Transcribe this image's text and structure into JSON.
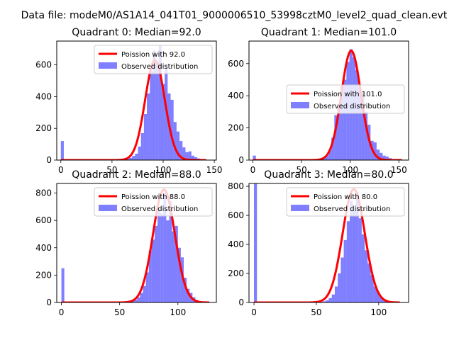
{
  "figure": {
    "suptitle": "Data file: modeM0/AS1A14_041T01_9000006510_53998cztM0_level2_quad_clean.evt"
  },
  "chart_data": [
    {
      "type": "histogram",
      "title": "Quadrant 0: Median=92.0",
      "xlim": [
        -4,
        152
      ],
      "ylim": [
        0,
        750
      ],
      "xticks": [
        0,
        50,
        100,
        150
      ],
      "yticks": [
        0,
        200,
        400,
        600
      ],
      "legend": {
        "placement": "top-right",
        "entries": [
          "Poission with 92.0",
          "Observed distribution"
        ]
      },
      "bin_width": 2.9,
      "bars": [
        {
          "x": 0,
          "value": 120
        },
        {
          "x": 58.0,
          "value": 3
        },
        {
          "x": 60.9,
          "value": 4
        },
        {
          "x": 63.8,
          "value": 8
        },
        {
          "x": 66.7,
          "value": 14
        },
        {
          "x": 69.6,
          "value": 26
        },
        {
          "x": 72.5,
          "value": 40
        },
        {
          "x": 75.4,
          "value": 85
        },
        {
          "x": 78.3,
          "value": 170
        },
        {
          "x": 81.2,
          "value": 290
        },
        {
          "x": 84.1,
          "value": 420
        },
        {
          "x": 87.0,
          "value": 560
        },
        {
          "x": 89.9,
          "value": 690
        },
        {
          "x": 92.8,
          "value": 620
        },
        {
          "x": 95.7,
          "value": 720
        },
        {
          "x": 98.6,
          "value": 480
        },
        {
          "x": 101.5,
          "value": 600
        },
        {
          "x": 104.4,
          "value": 420
        },
        {
          "x": 107.3,
          "value": 380
        },
        {
          "x": 110.2,
          "value": 240
        },
        {
          "x": 113.1,
          "value": 180
        },
        {
          "x": 116.0,
          "value": 120
        },
        {
          "x": 118.9,
          "value": 80
        },
        {
          "x": 121.8,
          "value": 50
        },
        {
          "x": 124.7,
          "value": 55
        },
        {
          "x": 127.6,
          "value": 28
        },
        {
          "x": 130.5,
          "value": 18
        },
        {
          "x": 133.4,
          "value": 10
        },
        {
          "x": 136.3,
          "value": 6
        },
        {
          "x": 139.2,
          "value": 3
        }
      ],
      "poisson": {
        "mean": 92.0,
        "peak": 628,
        "x_start": 0,
        "x_end": 142
      }
    },
    {
      "type": "histogram",
      "title": "Quadrant 1: Median=101.0",
      "xlim": [
        -4,
        160
      ],
      "ylim": [
        0,
        740
      ],
      "xticks": [
        0,
        50,
        100,
        150
      ],
      "yticks": [
        0,
        200,
        400,
        600
      ],
      "legend": {
        "placement": "center-right",
        "entries": [
          "Poission with 101.0",
          "Observed distribution"
        ]
      },
      "bin_width": 3.1,
      "bars": [
        {
          "x": 0,
          "value": 28
        },
        {
          "x": 62.0,
          "value": 3
        },
        {
          "x": 65.1,
          "value": 5
        },
        {
          "x": 68.2,
          "value": 10
        },
        {
          "x": 71.3,
          "value": 14
        },
        {
          "x": 74.4,
          "value": 25
        },
        {
          "x": 77.5,
          "value": 60
        },
        {
          "x": 80.6,
          "value": 140
        },
        {
          "x": 83.7,
          "value": 280
        },
        {
          "x": 86.8,
          "value": 330
        },
        {
          "x": 89.9,
          "value": 460
        },
        {
          "x": 93.0,
          "value": 500
        },
        {
          "x": 96.1,
          "value": 610
        },
        {
          "x": 99.2,
          "value": 690
        },
        {
          "x": 102.3,
          "value": 640
        },
        {
          "x": 105.4,
          "value": 560
        },
        {
          "x": 108.5,
          "value": 450
        },
        {
          "x": 111.6,
          "value": 420
        },
        {
          "x": 114.7,
          "value": 300
        },
        {
          "x": 117.8,
          "value": 220
        },
        {
          "x": 120.9,
          "value": 120
        },
        {
          "x": 124.0,
          "value": 110
        },
        {
          "x": 127.1,
          "value": 65
        },
        {
          "x": 130.2,
          "value": 45
        },
        {
          "x": 133.3,
          "value": 28
        },
        {
          "x": 136.4,
          "value": 22
        },
        {
          "x": 139.5,
          "value": 12
        },
        {
          "x": 142.6,
          "value": 6
        },
        {
          "x": 145.7,
          "value": 4
        }
      ],
      "poisson": {
        "mean": 101.0,
        "peak": 680,
        "x_start": 0,
        "x_end": 153
      }
    },
    {
      "type": "histogram",
      "title": "Quadrant 2: Median=88.0",
      "xlim": [
        -4,
        133
      ],
      "ylim": [
        0,
        870
      ],
      "xticks": [
        0,
        50,
        100
      ],
      "yticks": [
        0,
        200,
        400,
        600,
        800
      ],
      "legend": {
        "placement": "top-right",
        "entries": [
          "Poission with 88.0",
          "Observed distribution"
        ]
      },
      "bin_width": 2.5,
      "bars": [
        {
          "x": 0,
          "value": 250
        },
        {
          "x": 57.5,
          "value": 5
        },
        {
          "x": 60.0,
          "value": 10
        },
        {
          "x": 62.5,
          "value": 20
        },
        {
          "x": 65.0,
          "value": 38
        },
        {
          "x": 67.5,
          "value": 70
        },
        {
          "x": 70.0,
          "value": 120
        },
        {
          "x": 72.5,
          "value": 220
        },
        {
          "x": 75.0,
          "value": 380
        },
        {
          "x": 77.5,
          "value": 460
        },
        {
          "x": 80.0,
          "value": 560
        },
        {
          "x": 82.5,
          "value": 680
        },
        {
          "x": 85.0,
          "value": 650
        },
        {
          "x": 87.5,
          "value": 800
        },
        {
          "x": 90.0,
          "value": 600
        },
        {
          "x": 92.5,
          "value": 740
        },
        {
          "x": 95.0,
          "value": 520
        },
        {
          "x": 97.5,
          "value": 560
        },
        {
          "x": 100.0,
          "value": 400
        },
        {
          "x": 102.5,
          "value": 330
        },
        {
          "x": 105.0,
          "value": 180
        },
        {
          "x": 107.5,
          "value": 100
        },
        {
          "x": 110.0,
          "value": 70
        },
        {
          "x": 112.5,
          "value": 38
        },
        {
          "x": 115.0,
          "value": 18
        },
        {
          "x": 117.5,
          "value": 10
        },
        {
          "x": 120.0,
          "value": 5
        }
      ],
      "poisson": {
        "mean": 88.0,
        "peak": 825,
        "x_start": 0,
        "x_end": 127
      }
    },
    {
      "type": "histogram",
      "title": "Quadrant 3: Median=80.0",
      "xlim": [
        -4,
        124
      ],
      "ylim": [
        0,
        820
      ],
      "xticks": [
        0,
        50,
        100
      ],
      "yticks": [
        0,
        200,
        400,
        600,
        800
      ],
      "legend": {
        "placement": "top-right",
        "entries": [
          "Poission with 80.0",
          "Observed distribution"
        ]
      },
      "bin_width": 2.4,
      "bars": [
        {
          "x": 0,
          "value": 820
        },
        {
          "x": 52.8,
          "value": 4
        },
        {
          "x": 55.2,
          "value": 8
        },
        {
          "x": 57.6,
          "value": 15
        },
        {
          "x": 60.0,
          "value": 30
        },
        {
          "x": 62.4,
          "value": 55
        },
        {
          "x": 64.8,
          "value": 110
        },
        {
          "x": 67.2,
          "value": 200
        },
        {
          "x": 69.6,
          "value": 310
        },
        {
          "x": 72.0,
          "value": 430
        },
        {
          "x": 74.4,
          "value": 560
        },
        {
          "x": 76.8,
          "value": 700
        },
        {
          "x": 79.2,
          "value": 630
        },
        {
          "x": 81.6,
          "value": 760
        },
        {
          "x": 84.0,
          "value": 580
        },
        {
          "x": 86.4,
          "value": 470
        },
        {
          "x": 88.8,
          "value": 360
        },
        {
          "x": 91.2,
          "value": 270
        },
        {
          "x": 93.6,
          "value": 190
        },
        {
          "x": 96.0,
          "value": 110
        },
        {
          "x": 98.4,
          "value": 70
        },
        {
          "x": 100.8,
          "value": 40
        },
        {
          "x": 103.2,
          "value": 20
        },
        {
          "x": 105.6,
          "value": 10
        },
        {
          "x": 108.0,
          "value": 5
        }
      ],
      "poisson": {
        "mean": 80.0,
        "peak": 780,
        "x_start": 0,
        "x_end": 117
      }
    }
  ]
}
